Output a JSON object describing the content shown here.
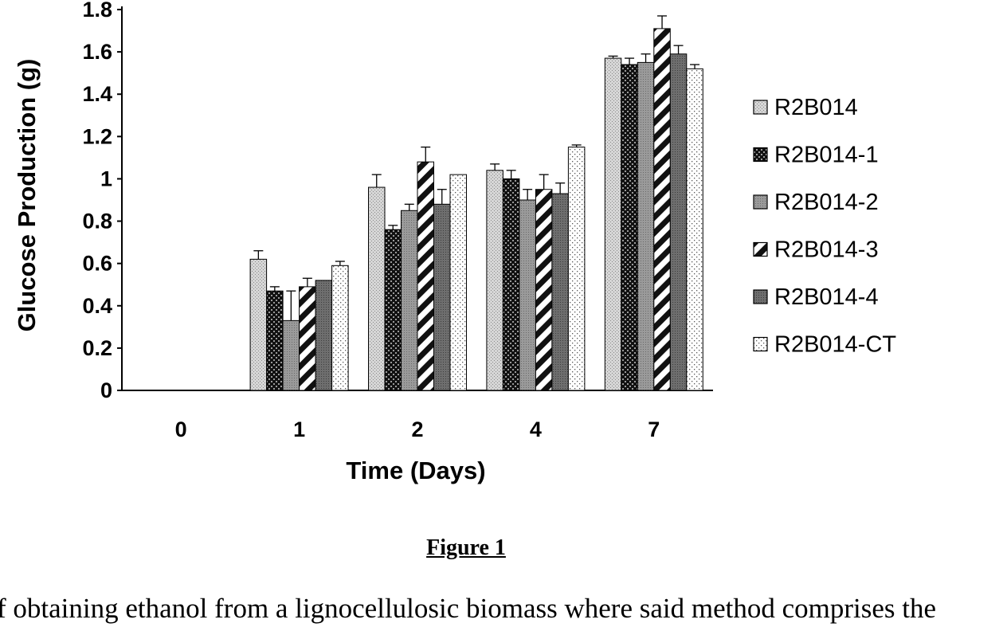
{
  "chart_data": {
    "type": "bar",
    "title": "",
    "xlabel": "Time (Days)",
    "ylabel": "Glucose Production (g)",
    "categories": [
      "0",
      "1",
      "2",
      "4",
      "7"
    ],
    "ylim": [
      0,
      1.8
    ],
    "yticks": [
      "0",
      "0.2",
      "0.4",
      "0.6",
      "0.8",
      "1",
      "1.2",
      "1.4",
      "1.6",
      "1.8"
    ],
    "grid": false,
    "legend_position": "right",
    "series": [
      {
        "name": "R2B014",
        "pattern": "light-dots",
        "values": [
          0,
          0.62,
          0.96,
          1.04,
          1.57
        ],
        "errors": [
          0,
          0.04,
          0.06,
          0.03,
          0.01
        ]
      },
      {
        "name": "R2B014-1",
        "pattern": "dark-check",
        "values": [
          0,
          0.47,
          0.76,
          1.0,
          1.54
        ],
        "errors": [
          0,
          0.02,
          0.02,
          0.04,
          0.03
        ]
      },
      {
        "name": "R2B014-2",
        "pattern": "mid-grey",
        "values": [
          0,
          0.33,
          0.85,
          0.9,
          1.55
        ],
        "errors": [
          0,
          0.14,
          0.03,
          0.05,
          0.04
        ]
      },
      {
        "name": "R2B014-3",
        "pattern": "diagonal",
        "values": [
          0,
          0.49,
          1.08,
          0.95,
          1.71
        ],
        "errors": [
          0,
          0.04,
          0.07,
          0.07,
          0.06
        ]
      },
      {
        "name": "R2B014-4",
        "pattern": "dark-grey",
        "values": [
          0,
          0.52,
          0.88,
          0.93,
          1.59
        ],
        "errors": [
          0,
          0.0,
          0.07,
          0.05,
          0.04
        ]
      },
      {
        "name": "R2B014-CT",
        "pattern": "sparse-dots",
        "values": [
          0,
          0.59,
          1.02,
          1.15,
          1.52
        ],
        "errors": [
          0,
          0.02,
          0.0,
          0.01,
          0.02
        ]
      }
    ]
  },
  "caption": "Figure 1",
  "body_text": "f obtaining ethanol from a lignocellulosic biomass where said method comprises the"
}
